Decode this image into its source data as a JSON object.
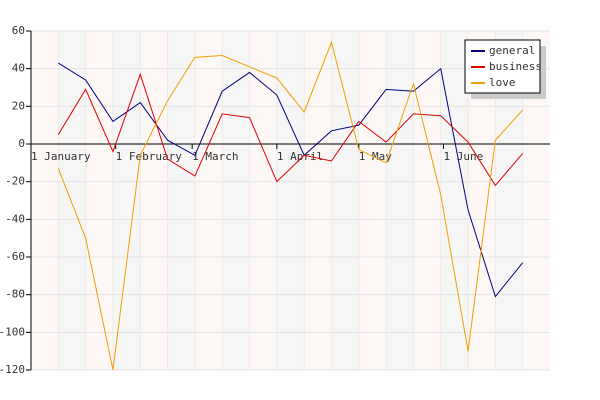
{
  "chart_data": {
    "type": "line",
    "x": [
      10,
      20,
      30,
      40,
      50,
      60,
      70,
      80,
      90,
      100,
      110,
      120,
      130,
      140,
      150,
      160,
      170,
      180
    ],
    "xlim": [
      0,
      190
    ],
    "xticks": [
      {
        "value": 0,
        "label": "1 January"
      },
      {
        "value": 31,
        "label": "1 February"
      },
      {
        "value": 59,
        "label": "1 March"
      },
      {
        "value": 90,
        "label": "1 April"
      },
      {
        "value": 120,
        "label": "1 May"
      },
      {
        "value": 151,
        "label": "1 June"
      }
    ],
    "ylim": [
      -120,
      60
    ],
    "yticks": [
      -120,
      -100,
      -80,
      -60,
      -40,
      -20,
      0,
      20,
      40,
      60
    ],
    "grid": true,
    "legend": "upper right",
    "series": [
      {
        "name": "general",
        "color": "#000080",
        "values": [
          43,
          34,
          12,
          22,
          2,
          -6,
          28,
          38,
          26,
          -6,
          7,
          10,
          29,
          28,
          40,
          -35,
          -81,
          -63
        ]
      },
      {
        "name": "business",
        "color": "#dd0000",
        "values": [
          5,
          29,
          -4,
          37,
          -8,
          -17,
          16,
          14,
          -20,
          -6,
          -9,
          12,
          1,
          16,
          15,
          1,
          -22,
          -5
        ]
      },
      {
        "name": "love",
        "color": "#f0a000",
        "values": [
          -13,
          -50,
          -120,
          -6,
          23,
          46,
          47,
          41,
          35,
          17,
          54,
          -3,
          -10,
          32,
          -27,
          -110,
          2,
          18
        ]
      }
    ]
  }
}
